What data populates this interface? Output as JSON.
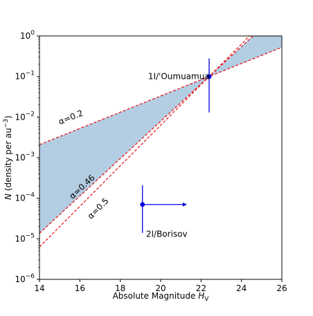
{
  "chart_data": {
    "type": "line",
    "xlabel_main": "Absolute Magnitude ",
    "xlabel_sub": "H",
    "xlabel_subscript": "V",
    "ylabel_var": "N",
    "ylabel_rest": " (density per au",
    "ylabel_exp": "−3",
    "ylabel_close": ")",
    "xlim": [
      14,
      26
    ],
    "ylim_log10": [
      -6,
      0
    ],
    "y_scale": "log",
    "grid": false,
    "x_ticks": [
      14,
      16,
      18,
      20,
      22,
      24,
      26
    ],
    "y_ticks_exponents": [
      -6,
      -5,
      -4,
      -3,
      -2,
      -1,
      0
    ],
    "y_tick_base": "10",
    "y_tick_labels": [
      "−6",
      "−5",
      "−4",
      "−3",
      "−2",
      "−1",
      "0"
    ],
    "pivot": {
      "H": 22.4,
      "N": 0.1
    },
    "lines": [
      {
        "alpha": 0.2,
        "label": "α=0.2",
        "label_pos": [
          15.6,
          0.0085
        ]
      },
      {
        "alpha": 0.46,
        "label": "α=0.46",
        "label_pos": [
          16.2,
          0.00017
        ]
      },
      {
        "alpha": 0.5,
        "label": "α=0.5",
        "label_pos": [
          17.0,
          5e-05
        ]
      }
    ],
    "shaded_between_alphas": [
      0.2,
      0.46
    ],
    "points": [
      {
        "name": "1I/'Oumuamua",
        "H": 22.4,
        "N": 0.1,
        "yerr_low": 0.013,
        "yerr_high": 0.28,
        "label_pos": [
          20.9,
          0.1
        ]
      },
      {
        "name": "2I/Borisov",
        "H": 19.1,
        "N": 7e-05,
        "yerr_low": 1.4e-05,
        "yerr_high": 0.00021,
        "lower_limit_H_to": 21.3,
        "label_pos": [
          20.3,
          1.3e-05
        ]
      }
    ],
    "colors": {
      "line": "#e41a1c",
      "fill": "#b3cde3",
      "point": "#0000dd"
    }
  }
}
